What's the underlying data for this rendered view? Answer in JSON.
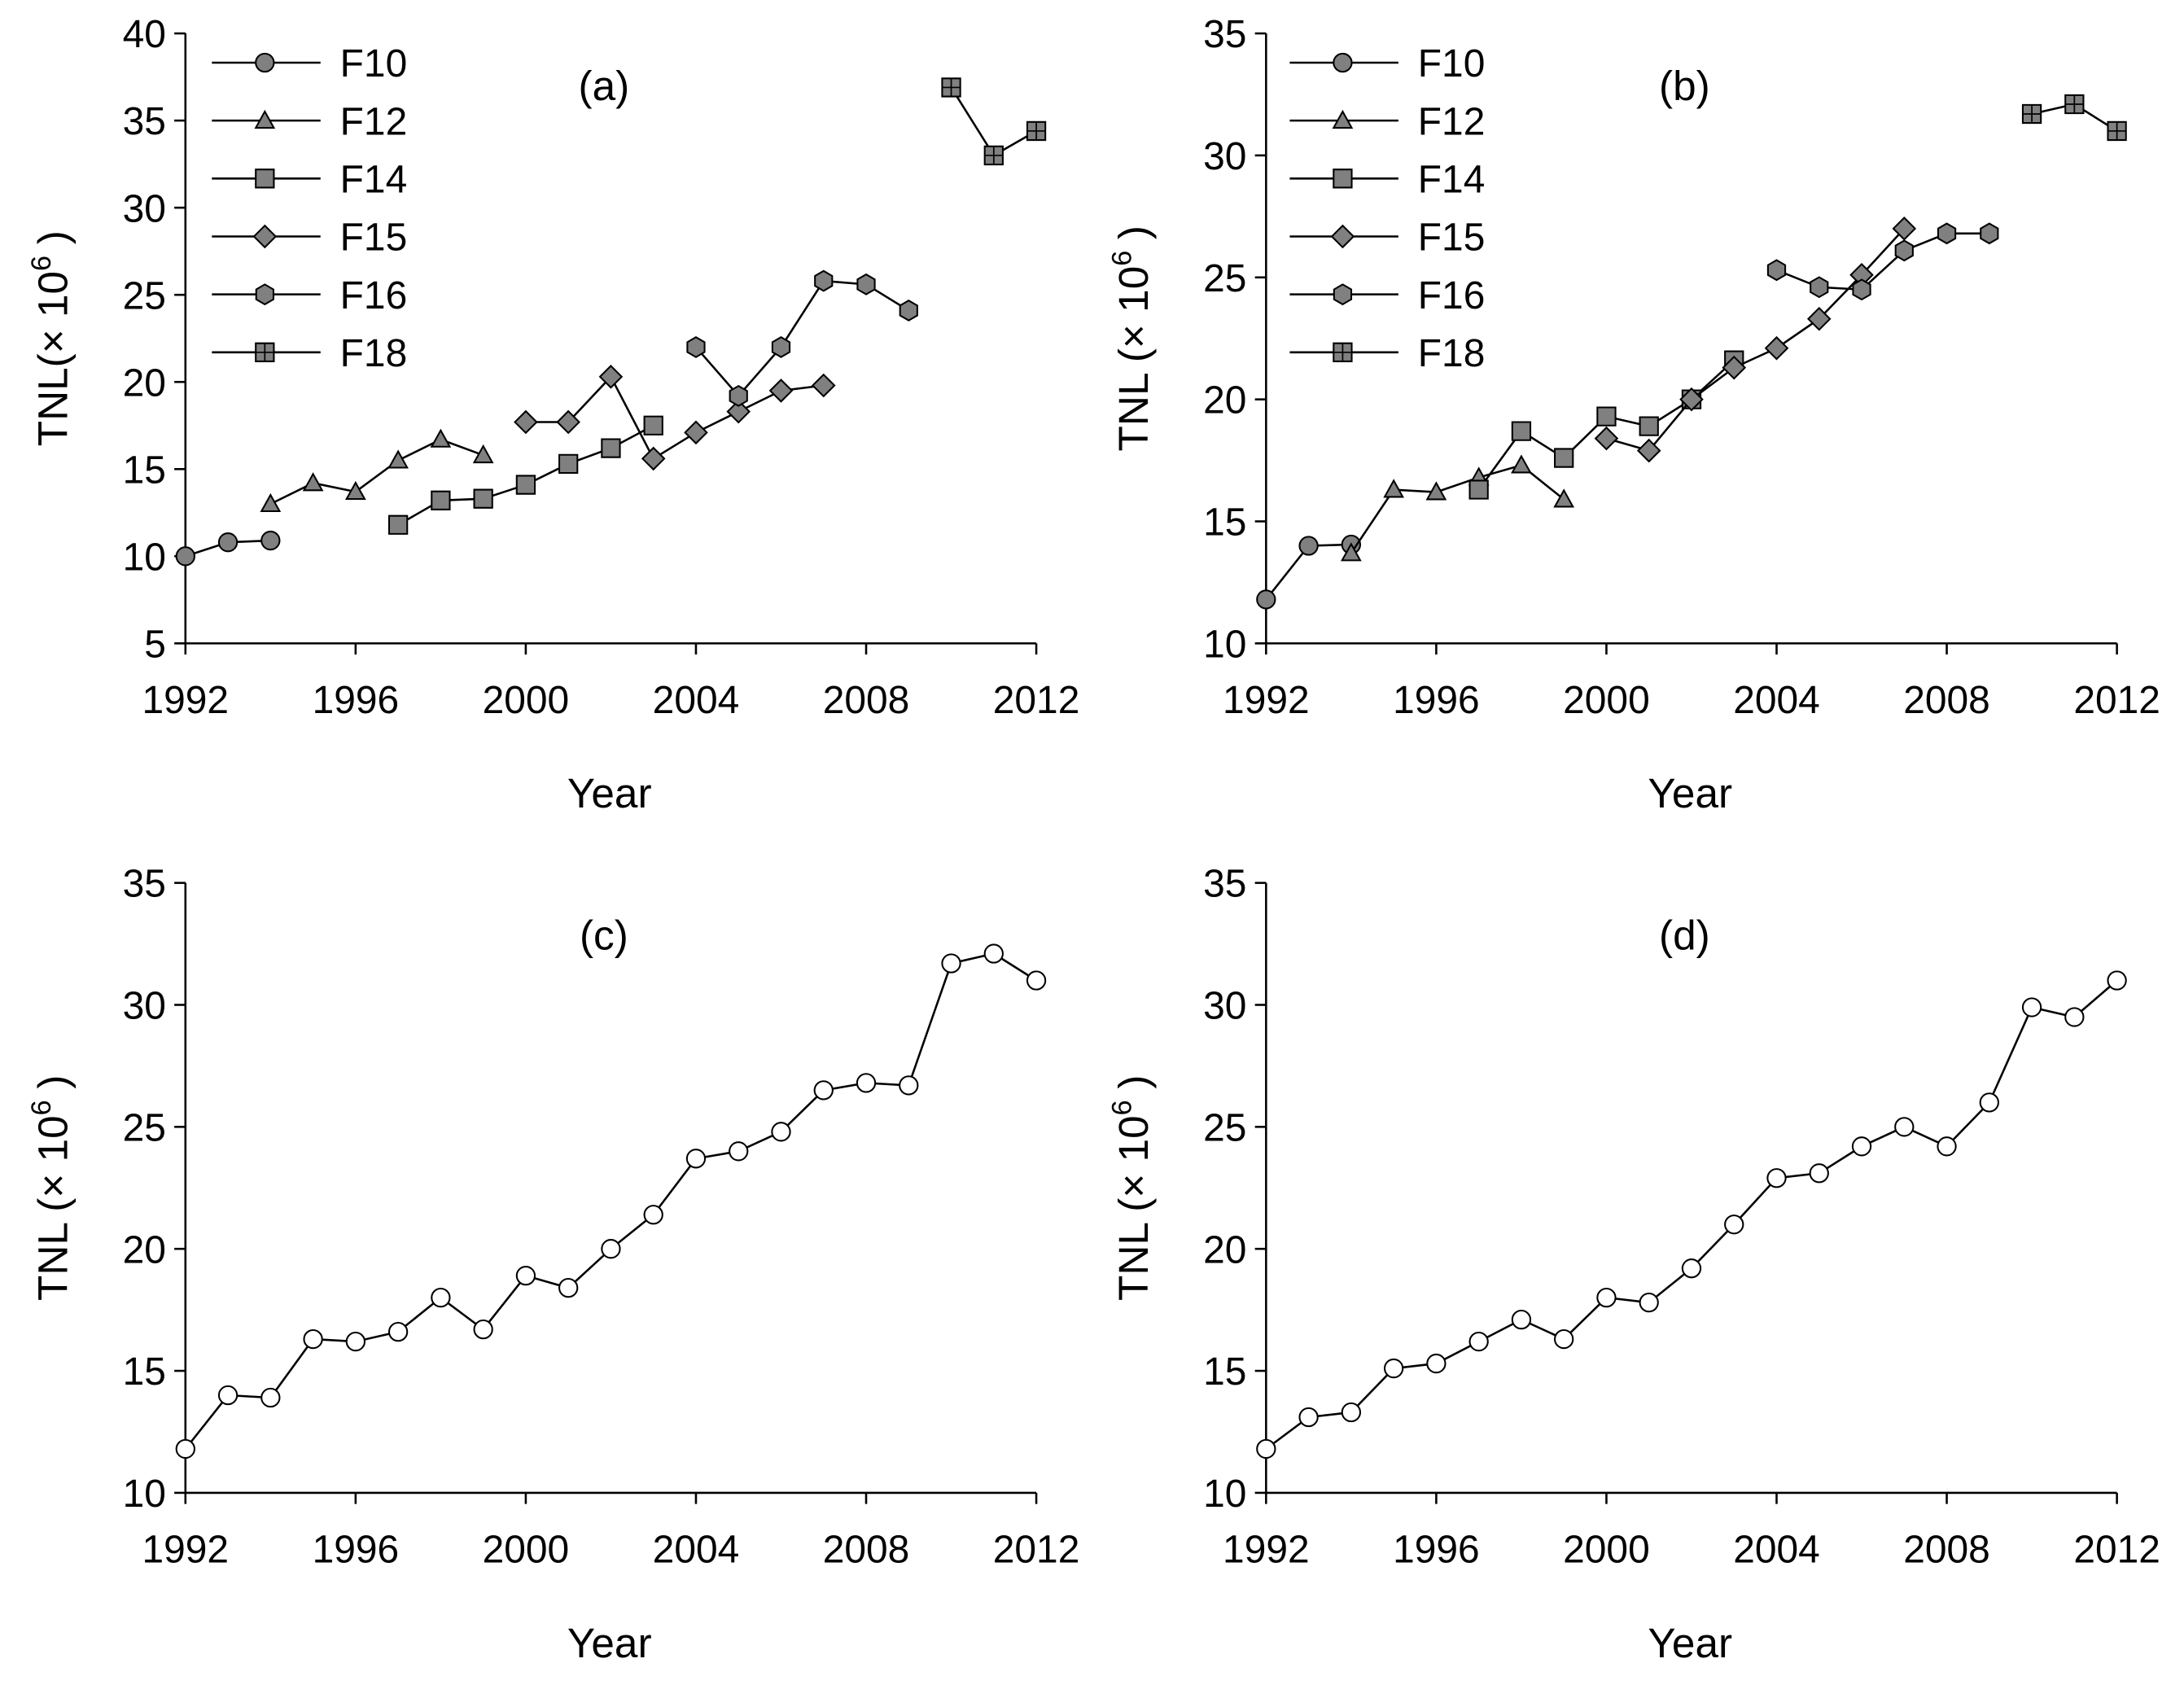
{
  "chart_data": [
    {
      "type": "line",
      "panel_label": "(a)",
      "x_label": "Year",
      "y_label": {
        "text": "TNL(× 10",
        "sup": "6",
        "end": ")"
      },
      "xlim": [
        1992,
        2012
      ],
      "xticks": [
        1992,
        1996,
        2000,
        2004,
        2008,
        2012
      ],
      "ylim": [
        5,
        40
      ],
      "yticks": [
        5,
        10,
        15,
        20,
        25,
        30,
        35,
        40
      ],
      "legend": "upper left",
      "series": [
        {
          "name": "F10",
          "marker": "circle",
          "color": "#808080",
          "x": [
            1992,
            1993,
            1994
          ],
          "values": [
            10.0,
            10.8,
            10.9
          ]
        },
        {
          "name": "F12",
          "marker": "triangle",
          "color": "#808080",
          "x": [
            1994,
            1995,
            1996,
            1997,
            1998,
            1999
          ],
          "values": [
            13.0,
            14.2,
            13.7,
            15.5,
            16.7,
            15.8
          ]
        },
        {
          "name": "F14",
          "marker": "square",
          "color": "#808080",
          "x": [
            1997,
            1998,
            1999,
            2000,
            2001,
            2002,
            2003
          ],
          "values": [
            11.8,
            13.2,
            13.3,
            14.1,
            15.3,
            16.2,
            17.5
          ]
        },
        {
          "name": "F15",
          "marker": "diamond",
          "color": "#808080",
          "x": [
            2000,
            2001,
            2002,
            2003,
            2004,
            2005,
            2006,
            2007
          ],
          "values": [
            17.7,
            17.7,
            20.3,
            15.6,
            17.1,
            18.3,
            19.5,
            19.8
          ]
        },
        {
          "name": "F16",
          "marker": "hexagon",
          "color": "#808080",
          "x": [
            2004,
            2005,
            2006,
            2007,
            2008,
            2009
          ],
          "values": [
            22.0,
            19.2,
            22.0,
            25.8,
            25.6,
            24.1
          ]
        },
        {
          "name": "F18",
          "marker": "square-cross",
          "color": "#808080",
          "x": [
            2010,
            2011,
            2012
          ],
          "values": [
            36.9,
            33.0,
            34.4
          ]
        }
      ]
    },
    {
      "type": "line",
      "panel_label": "(b)",
      "x_label": "Year",
      "y_label": {
        "text": "TNL (× 10",
        "sup": "6",
        "end": ")"
      },
      "xlim": [
        1992,
        2012
      ],
      "xticks": [
        1992,
        1996,
        2000,
        2004,
        2008,
        2012
      ],
      "ylim": [
        10,
        35
      ],
      "yticks": [
        10,
        15,
        20,
        25,
        30,
        35
      ],
      "legend": "upper left",
      "series": [
        {
          "name": "F10",
          "marker": "circle",
          "color": "#808080",
          "x": [
            1992,
            1993,
            1994
          ],
          "values": [
            11.8,
            14.0,
            14.05
          ]
        },
        {
          "name": "F12",
          "marker": "triangle",
          "color": "#808080",
          "x": [
            1994,
            1995,
            1996,
            1997,
            1998,
            1999
          ],
          "values": [
            13.7,
            16.3,
            16.2,
            16.8,
            17.3,
            15.9
          ]
        },
        {
          "name": "F14",
          "marker": "square",
          "color": "#808080",
          "x": [
            1997,
            1998,
            1999,
            2000,
            2001,
            2002,
            2003
          ],
          "values": [
            16.3,
            18.7,
            17.6,
            19.3,
            18.9,
            20.0,
            21.6
          ]
        },
        {
          "name": "F15",
          "marker": "diamond",
          "color": "#808080",
          "x": [
            2000,
            2001,
            2002,
            2003,
            2004,
            2005,
            2006,
            2007
          ],
          "values": [
            18.4,
            17.9,
            20.0,
            21.3,
            22.1,
            23.3,
            25.1,
            27.0
          ]
        },
        {
          "name": "F16",
          "marker": "hexagon",
          "color": "#808080",
          "x": [
            2004,
            2005,
            2006,
            2007,
            2008,
            2009
          ],
          "values": [
            25.3,
            24.6,
            24.5,
            26.1,
            26.8,
            26.8
          ]
        },
        {
          "name": "F18",
          "marker": "square-cross",
          "color": "#808080",
          "x": [
            2010,
            2011,
            2012
          ],
          "values": [
            31.7,
            32.1,
            31.0
          ]
        }
      ]
    },
    {
      "type": "line",
      "panel_label": "(c)",
      "x_label": "Year",
      "y_label": {
        "text": "TNL (× 10",
        "sup": "6",
        "end": ")"
      },
      "xlim": [
        1992,
        2012
      ],
      "xticks": [
        1992,
        1996,
        2000,
        2004,
        2008,
        2012
      ],
      "ylim": [
        10,
        35
      ],
      "yticks": [
        10,
        15,
        20,
        25,
        30,
        35
      ],
      "series": [
        {
          "marker": "circle",
          "color": "#ffffff",
          "x": [
            1992,
            1993,
            1994,
            1995,
            1996,
            1997,
            1998,
            1999,
            2000,
            2001,
            2002,
            2003,
            2004,
            2005,
            2006,
            2007,
            2008,
            2009,
            2010,
            2011,
            2012
          ],
          "values": [
            11.8,
            14.0,
            13.9,
            16.3,
            16.2,
            16.6,
            18.0,
            16.7,
            18.9,
            18.4,
            20.0,
            21.4,
            23.7,
            24.0,
            24.8,
            26.5,
            26.8,
            26.7,
            31.7,
            32.1,
            31.0
          ]
        }
      ]
    },
    {
      "type": "line",
      "panel_label": "(d)",
      "x_label": "Year",
      "y_label": {
        "text": "TNL (× 10",
        "sup": "6",
        "end": ")"
      },
      "xlim": [
        1992,
        2012
      ],
      "xticks": [
        1992,
        1996,
        2000,
        2004,
        2008,
        2012
      ],
      "ylim": [
        10,
        35
      ],
      "yticks": [
        10,
        15,
        20,
        25,
        30,
        35
      ],
      "series": [
        {
          "marker": "circle",
          "color": "#ffffff",
          "x": [
            1992,
            1993,
            1994,
            1995,
            1996,
            1997,
            1998,
            1999,
            2000,
            2001,
            2002,
            2003,
            2004,
            2005,
            2006,
            2007,
            2008,
            2009,
            2010,
            2011,
            2012
          ],
          "values": [
            11.8,
            13.1,
            13.3,
            15.1,
            15.3,
            16.2,
            17.1,
            16.3,
            18.0,
            17.8,
            19.2,
            21.0,
            22.9,
            23.1,
            24.2,
            25.0,
            24.2,
            26.0,
            29.9,
            29.5,
            31.0
          ]
        }
      ]
    }
  ]
}
